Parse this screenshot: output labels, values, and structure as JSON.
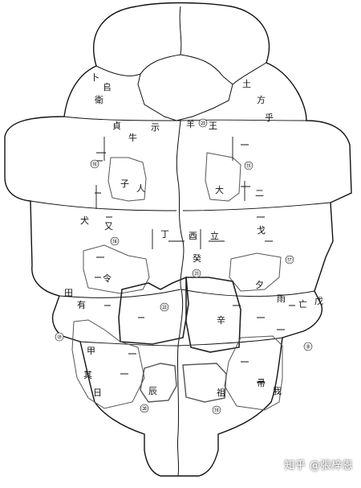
{
  "labels": {
    "r9": "⑨",
    "r10": "⑩",
    "r15": "⑮",
    "r16": "⑯",
    "r17": "⑰",
    "r18": "⑱",
    "r19": "⑲",
    "r20": "⑳",
    "r21": "㉑",
    "r22": "㉒",
    "r23": "㉓"
  },
  "watermark": "知乎 @張梓恩",
  "colors": {
    "ink": "#111111",
    "region": "#555555",
    "background": "#ffffff"
  }
}
